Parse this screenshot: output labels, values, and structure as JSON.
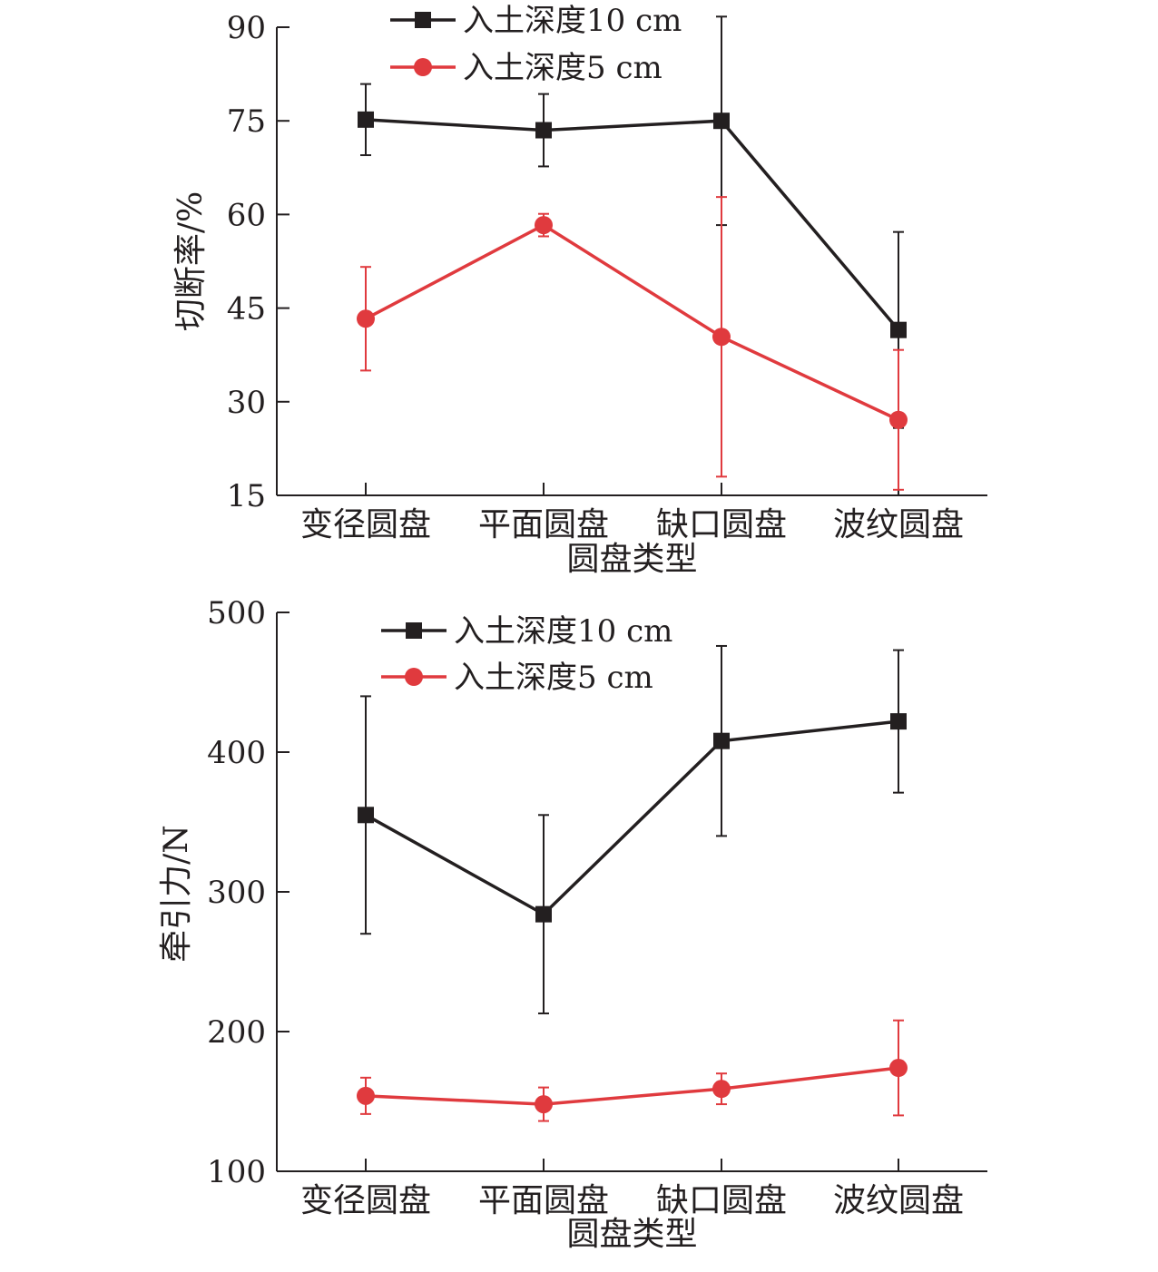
{
  "colors": {
    "series_black": "#231f20",
    "series_red": "#e03a3e",
    "axis": "#231f20"
  },
  "chart_data": [
    {
      "type": "line",
      "categories": [
        "变径圆盘",
        "平面圆盘",
        "缺口圆盘",
        "波纹圆盘"
      ],
      "xlabel": "圆盘类型",
      "ylabel": "切断率/%",
      "ylim": [
        15,
        90
      ],
      "yticks": [
        15,
        30,
        45,
        60,
        75,
        90
      ],
      "legend": "top-left",
      "grid": false,
      "series": [
        {
          "name": "入土深度10 cm",
          "marker": "square",
          "color": "#231f20",
          "values": [
            75.2,
            73.5,
            75.0,
            41.5
          ],
          "error": [
            5.7,
            5.8,
            16.7,
            15.7
          ]
        },
        {
          "name": "入土深度5 cm",
          "marker": "circle",
          "color": "#e03a3e",
          "values": [
            43.3,
            58.3,
            40.4,
            27.1
          ],
          "error": [
            8.3,
            1.8,
            22.4,
            11.2
          ]
        }
      ]
    },
    {
      "type": "line",
      "categories": [
        "变径圆盘",
        "平面圆盘",
        "缺口圆盘",
        "波纹圆盘"
      ],
      "xlabel": "圆盘类型",
      "ylabel": "牵引力/N",
      "ylim": [
        100,
        500
      ],
      "yticks": [
        100,
        200,
        300,
        400,
        500
      ],
      "legend": "top-left",
      "grid": false,
      "series": [
        {
          "name": "入土深度10 cm",
          "marker": "square",
          "color": "#231f20",
          "values": [
            355,
            284,
            408,
            422
          ],
          "error": [
            85,
            71,
            68,
            51
          ]
        },
        {
          "name": "入土深度5 cm",
          "marker": "circle",
          "color": "#e03a3e",
          "values": [
            154,
            148,
            159,
            174
          ],
          "error": [
            13,
            12,
            11,
            34
          ]
        }
      ]
    }
  ]
}
